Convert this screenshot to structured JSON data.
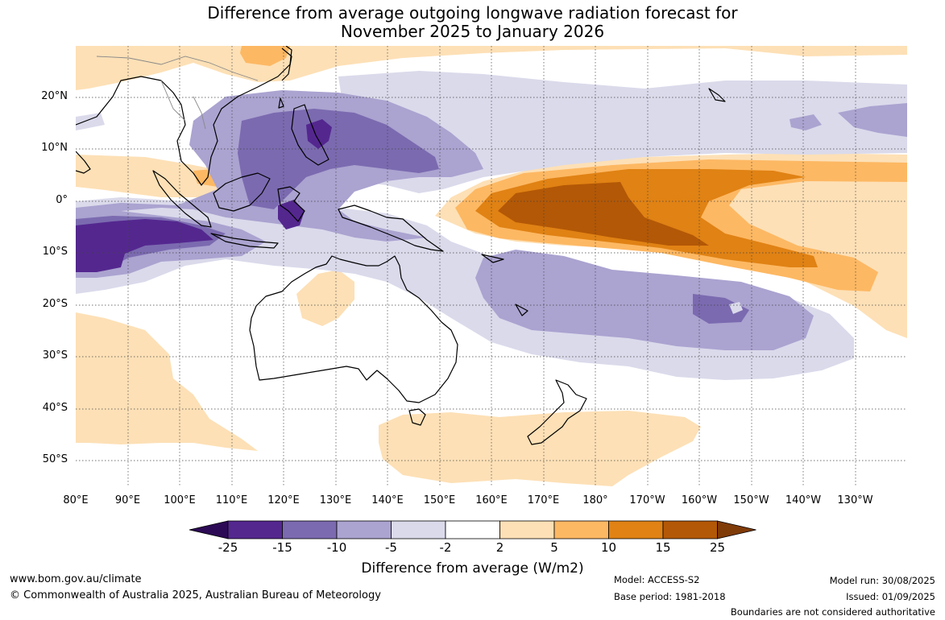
{
  "title": {
    "line1": "Difference from average outgoing longwave radiation forecast for",
    "line2": "November 2025 to January 2026"
  },
  "axes": {
    "lat_labels": [
      "20°N",
      "10°N",
      "0°",
      "10°S",
      "20°S",
      "30°S",
      "40°S",
      "50°S"
    ],
    "lon_labels": [
      "80°E",
      "90°E",
      "100°E",
      "110°E",
      "120°E",
      "130°E",
      "140°E",
      "150°E",
      "160°E",
      "170°E",
      "180°",
      "170°W",
      "160°W",
      "150°W",
      "140°W",
      "130°W"
    ]
  },
  "colorbar": {
    "title": "Difference from average (W/m2)",
    "tick_labels": [
      "-25",
      "-15",
      "-10",
      "-5",
      "-2",
      "2",
      "5",
      "10",
      "15",
      "25"
    ],
    "colors": [
      "#2d0a55",
      "#54278f",
      "#7b6ab0",
      "#aba3d0",
      "#dadaeb",
      "#ffffff",
      "#fde0b6",
      "#fdb863",
      "#e08214",
      "#b35806",
      "#7f3b08"
    ]
  },
  "footer": {
    "website": "www.bom.gov.au/climate",
    "copyright": "© Commonwealth of Australia 2025, Australian Bureau of Meteorology",
    "model": "Model: ACCESS-S2",
    "base_period": "Base period: 1981-2018",
    "model_run": "Model run: 30/08/2025",
    "issued": "Issued: 01/09/2025",
    "disclaimer": "Boundaries are not considered authoritative"
  }
}
